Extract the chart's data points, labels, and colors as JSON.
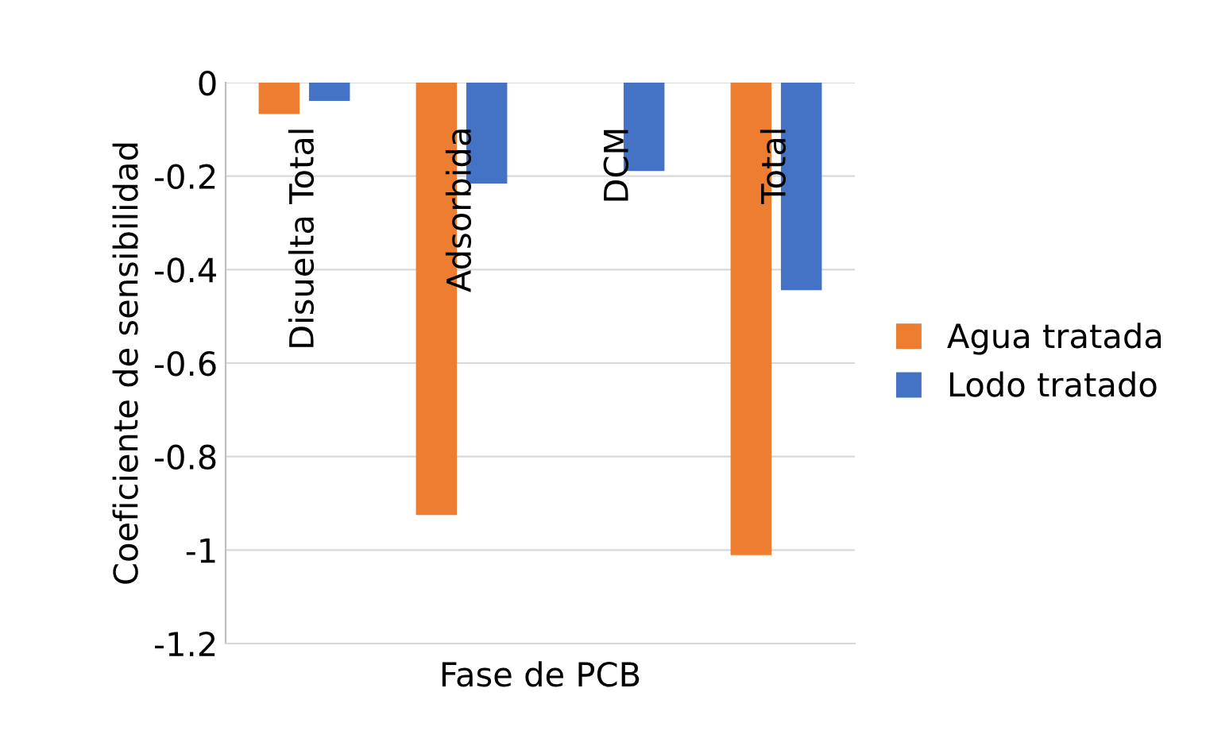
{
  "chart_data": {
    "type": "bar",
    "xlabel": "Fase de PCB",
    "ylabel": "Coeficiente de sensibilidad",
    "categories": [
      "Disuelta Total",
      "Adsorbida",
      "DCM",
      "Total"
    ],
    "series": [
      {
        "name": "Agua tratada",
        "color": "#ed7d31",
        "values": [
          -0.067,
          -0.925,
          0,
          -1.011
        ]
      },
      {
        "name": "Lodo tratado",
        "color": "#4472c4",
        "values": [
          -0.039,
          -0.216,
          -0.189,
          -0.444
        ]
      }
    ],
    "ylim": [
      -1.2,
      0
    ],
    "yticks": [
      {
        "value": -1.2,
        "label": "-1.2"
      },
      {
        "value": -1,
        "label": "-1"
      },
      {
        "value": -0.8,
        "label": "-0.8"
      },
      {
        "value": -0.6,
        "label": "-0.6"
      },
      {
        "value": -0.4,
        "label": "-0.4"
      },
      {
        "value": -0.2,
        "label": "-0.2"
      },
      {
        "value": 0,
        "label": "0"
      }
    ],
    "grid": "y",
    "legend": "right"
  }
}
